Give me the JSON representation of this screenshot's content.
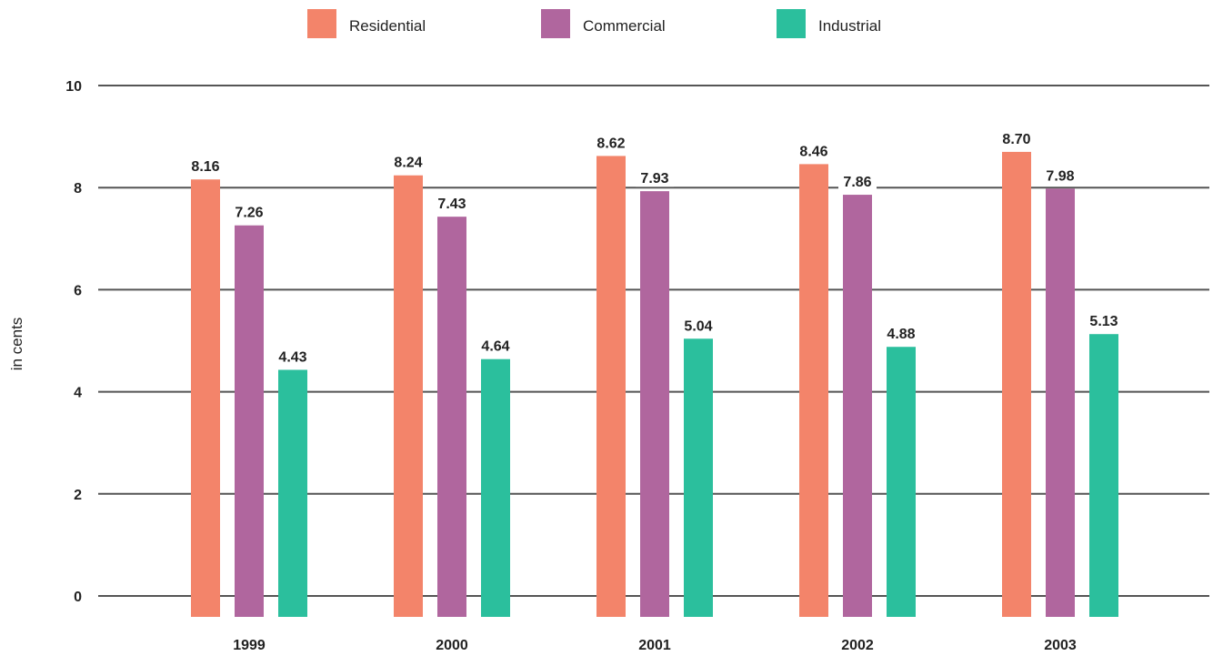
{
  "chart_data": {
    "type": "bar",
    "categories": [
      "1999",
      "2000",
      "2001",
      "2002",
      "2003"
    ],
    "series": [
      {
        "name": "Residential",
        "color": "#f3846a",
        "values": [
          8.16,
          8.24,
          8.62,
          8.46,
          8.7
        ]
      },
      {
        "name": "Commercial",
        "color": "#b0669e",
        "values": [
          7.26,
          7.43,
          7.93,
          7.86,
          7.98
        ]
      },
      {
        "name": "Industrial",
        "color": "#2bbf9d",
        "values": [
          4.43,
          4.64,
          5.04,
          4.88,
          5.13
        ]
      }
    ],
    "value_labels": [
      [
        "8.16",
        "8.24",
        "8.62",
        "8.46",
        "8.70"
      ],
      [
        "7.26",
        "7.43",
        "7.93",
        "7.86",
        "7.98"
      ],
      [
        "4.43",
        "4.64",
        "5.04",
        "4.88",
        "5.13"
      ]
    ],
    "ylabel": "in cents",
    "ylim": [
      0,
      10
    ],
    "yticks": [
      0,
      2,
      4,
      6,
      8,
      10
    ],
    "ytick_labels": [
      "0",
      "2",
      "4",
      "6",
      "8",
      "10"
    ],
    "grid": true,
    "legend_position": "top-center"
  }
}
